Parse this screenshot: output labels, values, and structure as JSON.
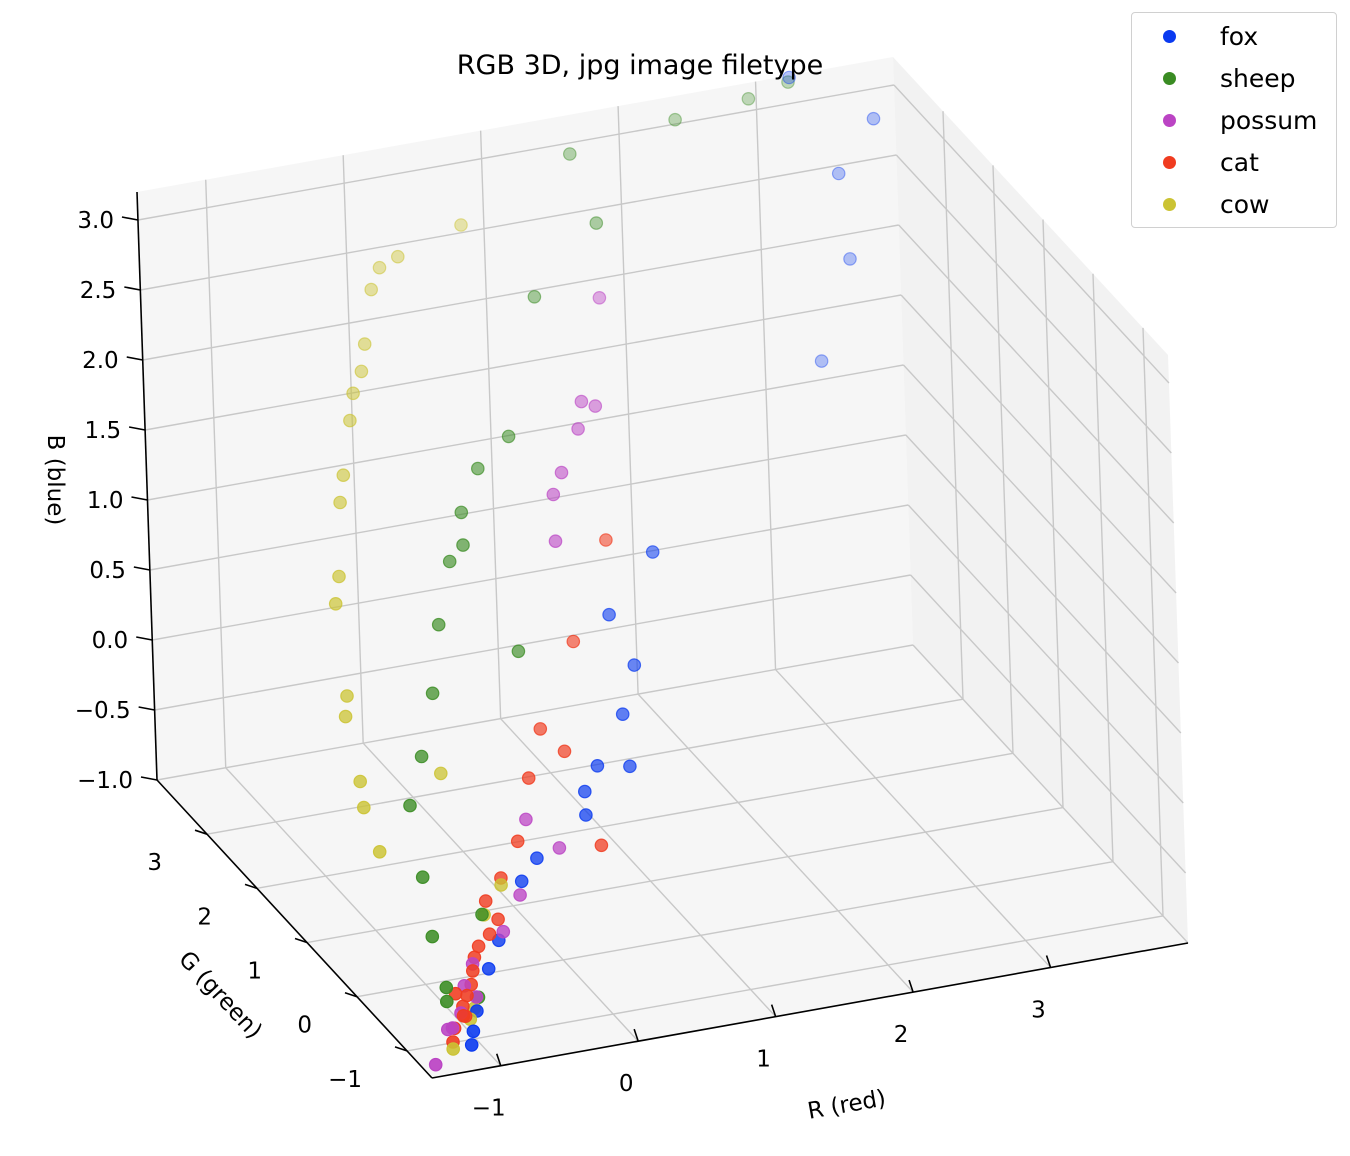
{
  "chart_data": {
    "type": "scatter",
    "title": "RGB 3D, jpg image filetype",
    "xlabel": "R (red)",
    "ylabel": "G (green)",
    "zlabel": "B (blue)",
    "xlim": [
      -1.5,
      4.0
    ],
    "ylim": [
      -1.5,
      4.0
    ],
    "zlim": [
      -1.0,
      3.2
    ],
    "xticks": [
      {
        "v": -1,
        "label": "−1"
      },
      {
        "v": 0,
        "label": "0"
      },
      {
        "v": 1,
        "label": "1"
      },
      {
        "v": 2,
        "label": "2"
      },
      {
        "v": 3,
        "label": "3"
      }
    ],
    "yticks": [
      {
        "v": -1,
        "label": "−1"
      },
      {
        "v": 0,
        "label": "0"
      },
      {
        "v": 1,
        "label": "1"
      },
      {
        "v": 2,
        "label": "2"
      },
      {
        "v": 3,
        "label": "3"
      }
    ],
    "zticks": [
      {
        "v": -1.0,
        "label": "−1.0"
      },
      {
        "v": -0.5,
        "label": "−0.5"
      },
      {
        "v": 0.0,
        "label": "0.0"
      },
      {
        "v": 0.5,
        "label": "0.5"
      },
      {
        "v": 1.0,
        "label": "1.0"
      },
      {
        "v": 1.5,
        "label": "1.5"
      },
      {
        "v": 2.0,
        "label": "2.0"
      },
      {
        "v": 2.5,
        "label": "2.5"
      },
      {
        "v": 3.0,
        "label": "3.0"
      }
    ],
    "grid": true,
    "legend_position": "top-right",
    "series": [
      {
        "name": "fox",
        "color": "#0a3af0",
        "points": [
          [
            -1.1,
            -1.2,
            -0.95
          ],
          [
            -1.05,
            -1.1,
            -0.9
          ],
          [
            -0.95,
            -0.9,
            -0.85
          ],
          [
            -0.75,
            -0.6,
            -0.7
          ],
          [
            -0.6,
            -0.4,
            -0.6
          ],
          [
            -0.35,
            -0.2,
            -0.3
          ],
          [
            -0.2,
            -0.1,
            -0.2
          ],
          [
            0.25,
            0.15,
            0.1
          ],
          [
            0.4,
            0.3,
            0.2
          ],
          [
            0.7,
            0.6,
            0.4
          ],
          [
            0.9,
            0.9,
            0.6
          ],
          [
            0.8,
            1.1,
            0.9
          ],
          [
            1.2,
            1.3,
            1.2
          ],
          [
            0.6,
            0.2,
            0.2
          ],
          [
            3.2,
            3.4,
            1.4
          ],
          [
            3.5,
            3.6,
            2.0
          ],
          [
            3.3,
            3.2,
            2.8
          ],
          [
            3.6,
            3.3,
            3.1
          ],
          [
            3.0,
            3.3,
            3.5
          ],
          [
            0.2,
            0.0,
            0.0
          ]
        ]
      },
      {
        "name": "sheep",
        "color": "#3a8c23",
        "points": [
          [
            -1.2,
            -1.0,
            -0.7
          ],
          [
            -1.15,
            -0.6,
            -0.4
          ],
          [
            -1.1,
            -0.3,
            -0.1
          ],
          [
            -1.0,
            0.2,
            0.2
          ],
          [
            -0.8,
            0.5,
            0.4
          ],
          [
            -0.6,
            0.8,
            0.7
          ],
          [
            -0.4,
            1.2,
            1.0
          ],
          [
            -0.2,
            1.5,
            1.3
          ],
          [
            0.0,
            1.8,
            1.5
          ],
          [
            0.2,
            2.0,
            1.7
          ],
          [
            -0.75,
            -0.5,
            -0.35
          ],
          [
            -1.2,
            -1.0,
            -0.6
          ],
          [
            0.1,
            1.0,
            0.8
          ],
          [
            0.5,
            2.2,
            1.8
          ],
          [
            1.5,
            3.1,
            2.8
          ],
          [
            1.5,
            3.6,
            3.1
          ],
          [
            2.2,
            3.4,
            3.3
          ],
          [
            2.7,
            3.3,
            3.4
          ],
          [
            3.2,
            3.9,
            3.2
          ],
          [
            1.0,
            3.0,
            2.4
          ],
          [
            -0.1,
            1.5,
            1.4
          ],
          [
            -0.9,
            -0.8,
            -0.8
          ]
        ]
      },
      {
        "name": "possum",
        "color": "#bb44c4",
        "points": [
          [
            -1.4,
            -1.3,
            -1.0
          ],
          [
            -1.2,
            -1.0,
            -0.9
          ],
          [
            -1.2,
            -1.1,
            -0.85
          ],
          [
            -1.1,
            -1.0,
            -0.8
          ],
          [
            -1.0,
            -0.8,
            -0.7
          ],
          [
            -0.95,
            -0.9,
            -0.75
          ],
          [
            -0.6,
            -0.5,
            -0.5
          ],
          [
            -0.4,
            -0.3,
            -0.35
          ],
          [
            0.0,
            0.0,
            -0.2
          ],
          [
            -0.2,
            0.1,
            0.0
          ],
          [
            0.5,
            1.3,
            1.4
          ],
          [
            0.6,
            1.6,
            1.6
          ],
          [
            0.7,
            1.7,
            1.7
          ],
          [
            0.9,
            1.9,
            1.9
          ],
          [
            1.0,
            2.1,
            2.0
          ],
          [
            1.1,
            2.1,
            1.95
          ],
          [
            1.4,
            2.8,
            2.4
          ],
          [
            -0.9,
            -0.7,
            -0.6
          ]
        ]
      },
      {
        "name": "cat",
        "color": "#f03c20",
        "points": [
          [
            -1.2,
            -1.1,
            -0.95
          ],
          [
            -1.15,
            -1.0,
            -0.9
          ],
          [
            -1.1,
            -1.05,
            -0.8
          ],
          [
            -1.05,
            -0.95,
            -0.85
          ],
          [
            -1.0,
            -0.85,
            -0.75
          ],
          [
            -0.95,
            -0.8,
            -0.7
          ],
          [
            -0.9,
            -0.7,
            -0.65
          ],
          [
            -0.85,
            -0.6,
            -0.6
          ],
          [
            -0.8,
            -0.55,
            -0.55
          ],
          [
            -0.7,
            -0.5,
            -0.5
          ],
          [
            -0.65,
            -0.3,
            -0.35
          ],
          [
            -0.5,
            -0.2,
            -0.25
          ],
          [
            -0.3,
            0.0,
            -0.1
          ],
          [
            -0.1,
            0.3,
            0.2
          ],
          [
            0.1,
            0.6,
            0.4
          ],
          [
            0.2,
            0.4,
            0.3
          ],
          [
            0.5,
            1.0,
            0.8
          ],
          [
            0.9,
            1.4,
            1.3
          ],
          [
            -1.05,
            -0.9,
            -0.8
          ],
          [
            0.2,
            -0.3,
            -0.1
          ],
          [
            -0.6,
            -0.4,
            -0.45
          ],
          [
            -1.1,
            -0.9,
            -0.7
          ]
        ]
      },
      {
        "name": "cow",
        "color": "#cbc333",
        "points": [
          [
            -1.0,
            -0.9,
            -0.9
          ],
          [
            -0.95,
            -0.85,
            -0.85
          ],
          [
            -1.3,
            0.0,
            0.0
          ],
          [
            -1.3,
            0.3,
            0.2
          ],
          [
            -1.25,
            0.5,
            0.3
          ],
          [
            -1.2,
            0.9,
            0.6
          ],
          [
            -1.15,
            1.0,
            0.7
          ],
          [
            -1.0,
            1.6,
            1.1
          ],
          [
            -0.9,
            1.8,
            1.2
          ],
          [
            -0.7,
            2.3,
            1.5
          ],
          [
            -0.6,
            2.5,
            1.6
          ],
          [
            -0.4,
            2.9,
            1.8
          ],
          [
            -0.3,
            3.1,
            1.9
          ],
          [
            -0.2,
            3.2,
            2.0
          ],
          [
            -0.1,
            3.4,
            2.1
          ],
          [
            0.1,
            3.8,
            2.3
          ],
          [
            0.2,
            3.9,
            2.4
          ],
          [
            0.3,
            3.8,
            2.5
          ],
          [
            0.8,
            3.9,
            2.6
          ],
          [
            -0.7,
            0.4,
            0.3
          ],
          [
            -0.5,
            -0.2,
            -0.3
          ],
          [
            -0.7,
            -0.4,
            -0.4
          ],
          [
            -1.2,
            -1.1,
            -1.0
          ]
        ]
      }
    ]
  }
}
